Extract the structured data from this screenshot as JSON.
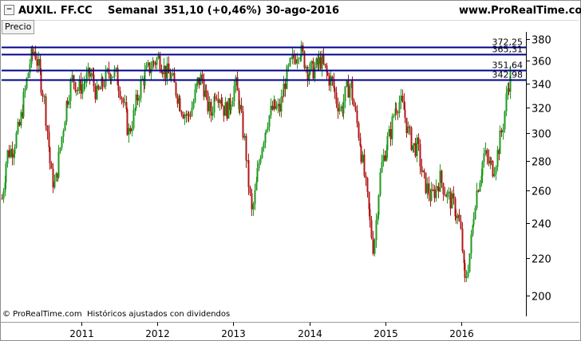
{
  "header": {
    "symbol": "AUXIL. FF.CC",
    "period": "Semanal",
    "price_change": "351,10 (+0,46%)",
    "date": "30-ago-2016",
    "website": "www.ProRealTime.com"
  },
  "panel_label": "Precio",
  "footnote": "© ProRealTime.com  Históricos ajustados con dividendos",
  "colors": {
    "up": "#1f9a1f",
    "down": "#b01818",
    "hline": "#00008b",
    "axis_text": "#000000"
  },
  "chart_data": {
    "type": "candlestick",
    "y_scale": "log",
    "ylim": [
      192,
      385
    ],
    "y_ticks": [
      200,
      220,
      240,
      260,
      280,
      300,
      320,
      340,
      360,
      380
    ],
    "x_ticks": [
      "2011",
      "2012",
      "2013",
      "2014",
      "2015",
      "2016"
    ],
    "x_tick_dates": [
      2011.0,
      2012.0,
      2013.0,
      2014.0,
      2015.0,
      2016.0
    ],
    "xlim": [
      2009.95,
      2016.85
    ],
    "last_date": 2016.66,
    "horizontal_lines": [
      {
        "label": "372,25",
        "value": 372.25
      },
      {
        "label": "365,31",
        "value": 365.31
      },
      {
        "label": "351,64",
        "value": 351.64
      },
      {
        "label": "342,98",
        "value": 342.98
      }
    ],
    "closes": [
      [
        2009.95,
        255
      ],
      [
        2010.02,
        285
      ],
      [
        2010.1,
        290
      ],
      [
        2010.18,
        305
      ],
      [
        2010.26,
        335
      ],
      [
        2010.32,
        360
      ],
      [
        2010.38,
        370
      ],
      [
        2010.44,
        350
      ],
      [
        2010.5,
        330
      ],
      [
        2010.55,
        300
      ],
      [
        2010.6,
        270
      ],
      [
        2010.65,
        263
      ],
      [
        2010.72,
        290
      ],
      [
        2010.8,
        325
      ],
      [
        2010.88,
        345
      ],
      [
        2010.95,
        335
      ],
      [
        2011.05,
        342
      ],
      [
        2011.12,
        348
      ],
      [
        2011.2,
        330
      ],
      [
        2011.28,
        340
      ],
      [
        2011.36,
        350
      ],
      [
        2011.44,
        348
      ],
      [
        2011.5,
        338
      ],
      [
        2011.56,
        320
      ],
      [
        2011.62,
        300
      ],
      [
        2011.7,
        318
      ],
      [
        2011.78,
        340
      ],
      [
        2011.86,
        350
      ],
      [
        2011.94,
        358
      ],
      [
        2012.02,
        362
      ],
      [
        2012.1,
        350
      ],
      [
        2012.18,
        345
      ],
      [
        2012.26,
        330
      ],
      [
        2012.33,
        318
      ],
      [
        2012.4,
        312
      ],
      [
        2012.46,
        322
      ],
      [
        2012.52,
        340
      ],
      [
        2012.58,
        345
      ],
      [
        2012.64,
        325
      ],
      [
        2012.7,
        315
      ],
      [
        2012.76,
        335
      ],
      [
        2012.82,
        330
      ],
      [
        2012.88,
        318
      ],
      [
        2012.94,
        320
      ],
      [
        2013.02,
        340
      ],
      [
        2013.08,
        320
      ],
      [
        2013.14,
        295
      ],
      [
        2013.19,
        270
      ],
      [
        2013.24,
        245
      ],
      [
        2013.3,
        265
      ],
      [
        2013.36,
        290
      ],
      [
        2013.44,
        310
      ],
      [
        2013.52,
        320
      ],
      [
        2013.6,
        318
      ],
      [
        2013.68,
        342
      ],
      [
        2013.74,
        355
      ],
      [
        2013.8,
        362
      ],
      [
        2013.86,
        372
      ],
      [
        2013.92,
        362
      ],
      [
        2013.98,
        350
      ],
      [
        2014.06,
        352
      ],
      [
        2014.14,
        360
      ],
      [
        2014.22,
        348
      ],
      [
        2014.3,
        340
      ],
      [
        2014.36,
        325
      ],
      [
        2014.42,
        318
      ],
      [
        2014.48,
        333
      ],
      [
        2014.54,
        340
      ],
      [
        2014.6,
        315
      ],
      [
        2014.66,
        295
      ],
      [
        2014.72,
        270
      ],
      [
        2014.78,
        245
      ],
      [
        2014.84,
        225
      ],
      [
        2014.88,
        245
      ],
      [
        2014.94,
        275
      ],
      [
        2015.0,
        290
      ],
      [
        2015.06,
        300
      ],
      [
        2015.12,
        320
      ],
      [
        2015.18,
        325
      ],
      [
        2015.24,
        318
      ],
      [
        2015.3,
        300
      ],
      [
        2015.36,
        290
      ],
      [
        2015.42,
        290
      ],
      [
        2015.48,
        270
      ],
      [
        2015.54,
        262
      ],
      [
        2015.6,
        255
      ],
      [
        2015.66,
        262
      ],
      [
        2015.72,
        268
      ],
      [
        2015.78,
        260
      ],
      [
        2015.84,
        255
      ],
      [
        2015.9,
        250
      ],
      [
        2015.96,
        242
      ],
      [
        2016.0,
        230
      ],
      [
        2016.04,
        205
      ],
      [
        2016.08,
        215
      ],
      [
        2016.12,
        228
      ],
      [
        2016.18,
        255
      ],
      [
        2016.24,
        270
      ],
      [
        2016.3,
        285
      ],
      [
        2016.36,
        278
      ],
      [
        2016.42,
        275
      ],
      [
        2016.48,
        288
      ],
      [
        2016.54,
        305
      ],
      [
        2016.6,
        335
      ],
      [
        2016.66,
        351
      ]
    ]
  }
}
